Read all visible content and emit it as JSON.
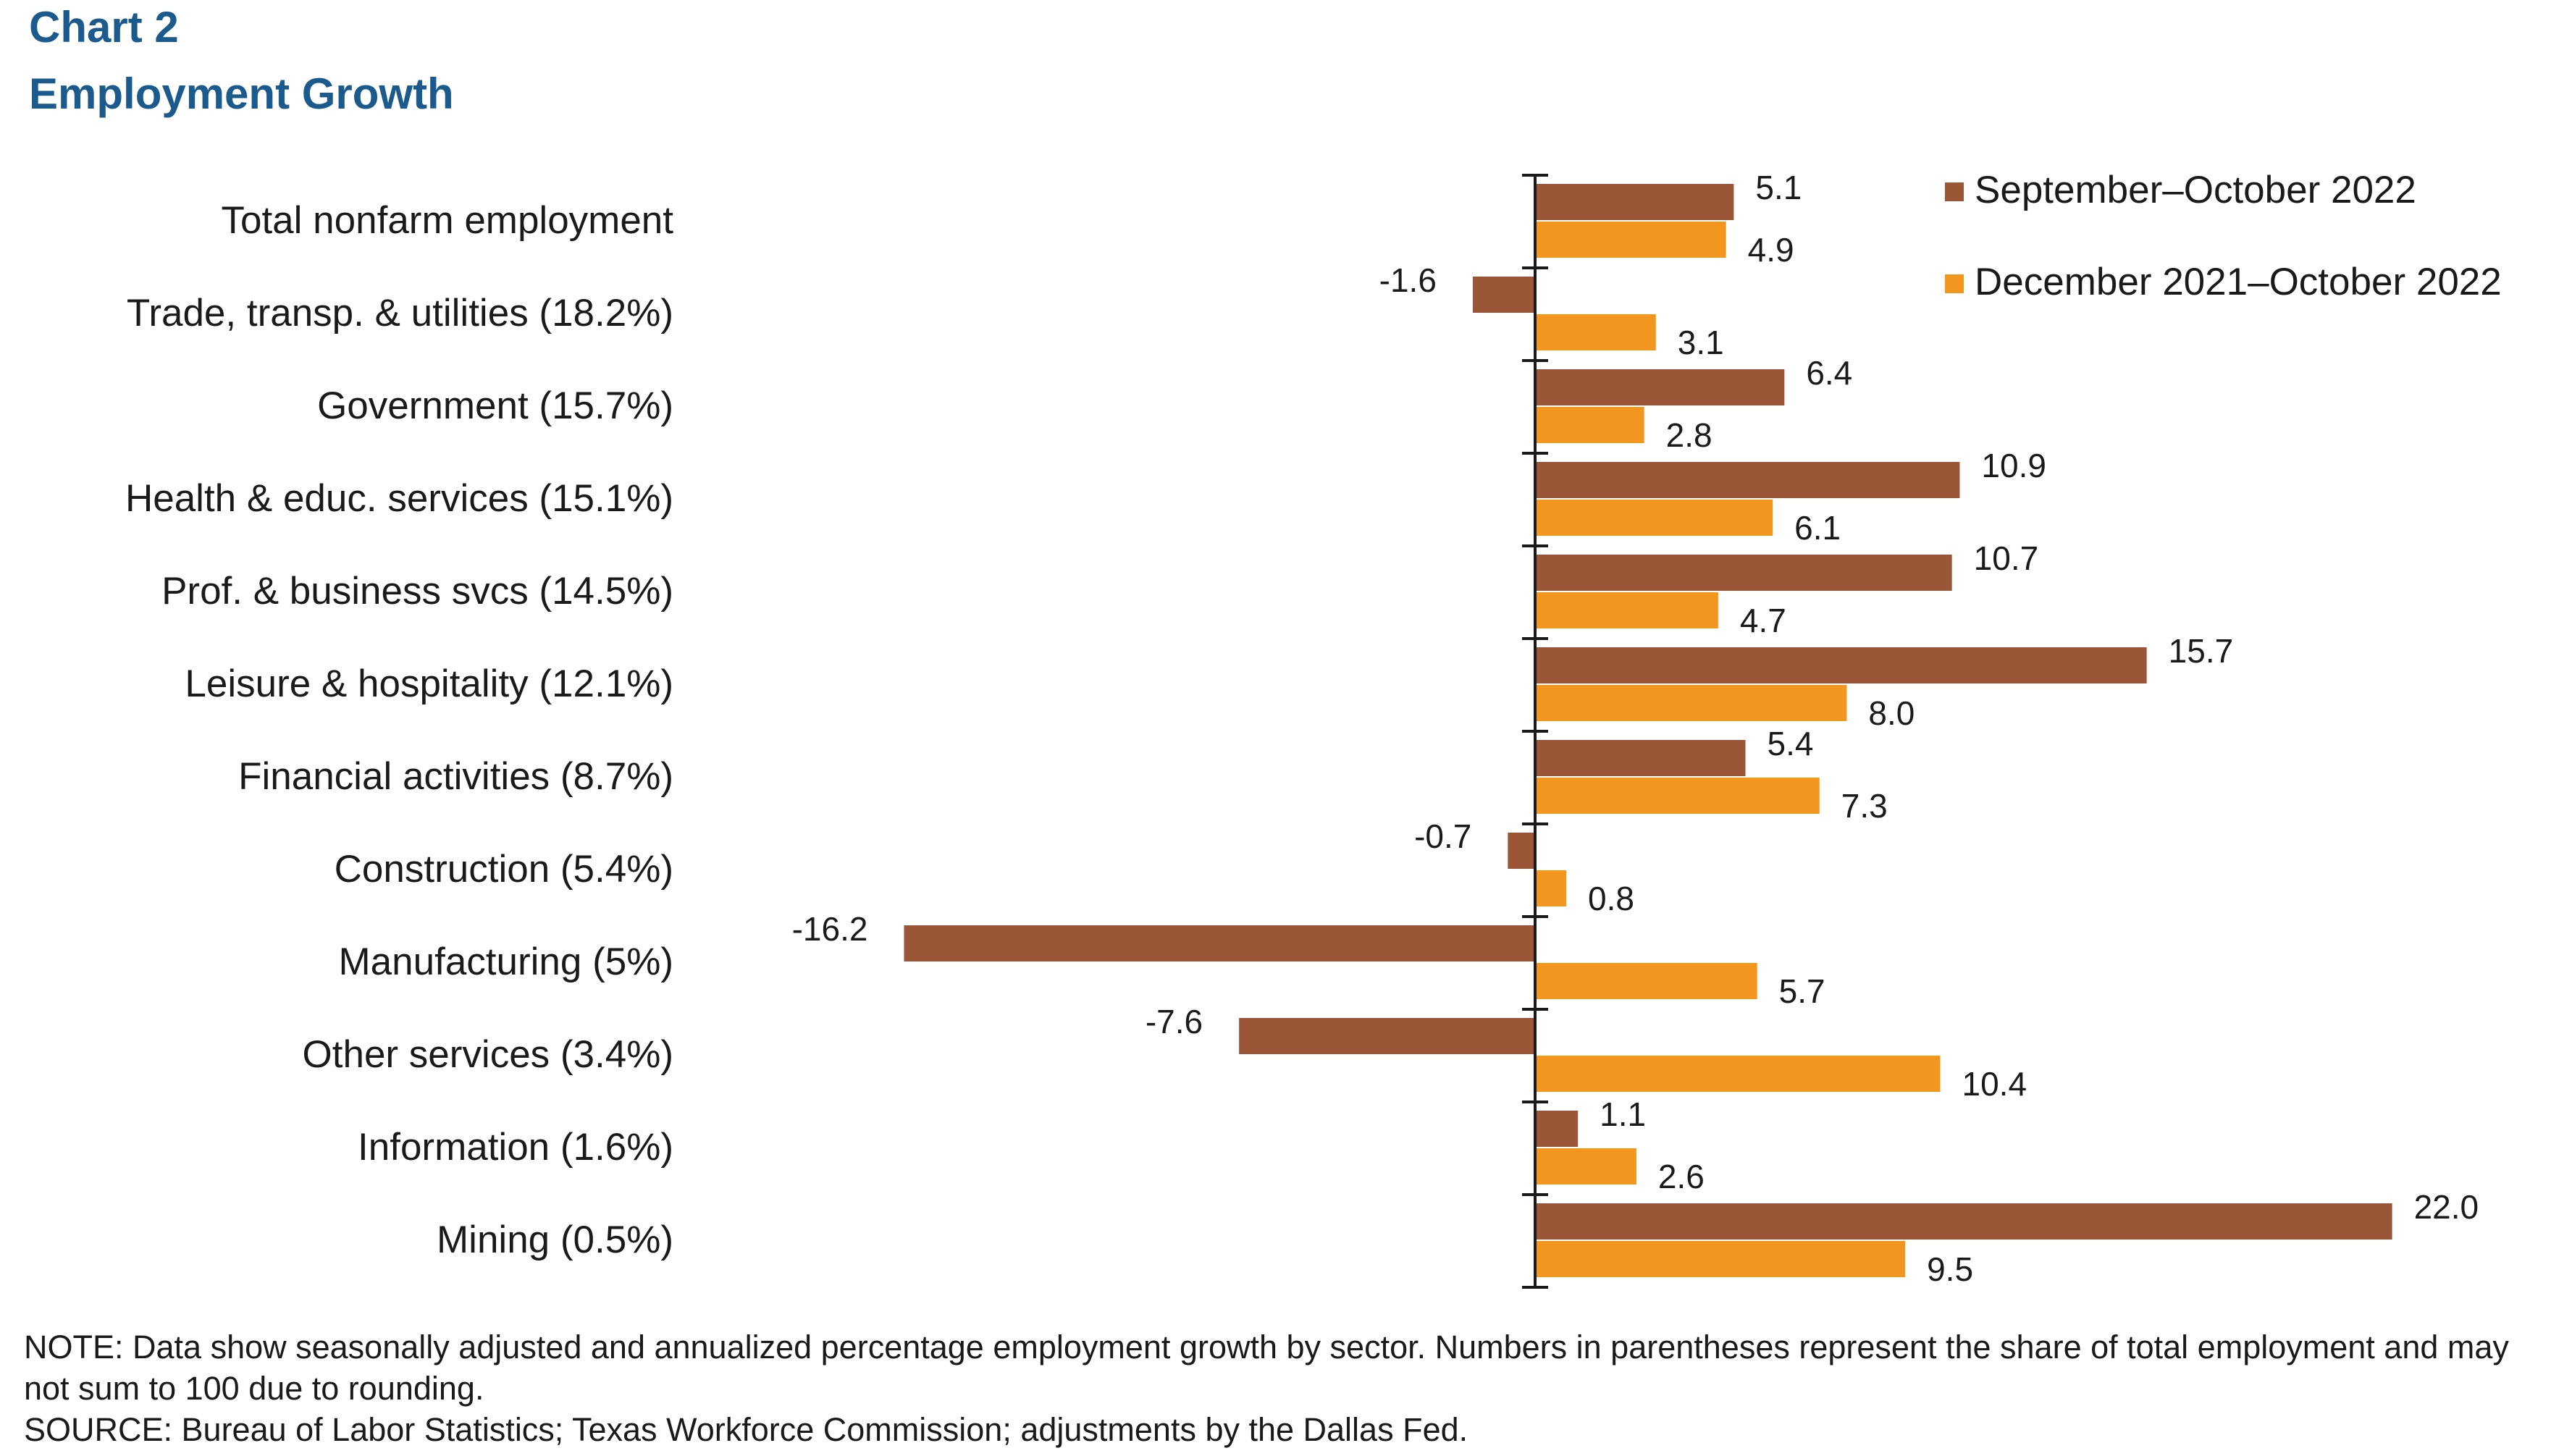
{
  "header": {
    "chart_number": "Chart 2",
    "title": "Employment Growth"
  },
  "footer": {
    "note": "NOTE: Data show seasonally adjusted and annualized percentage employment growth by sector. Numbers in parentheses represent the share of total employment and may not sum to 100 due to rounding.",
    "source": "SOURCE: Bureau of Labor Statistics; Texas Workforce Commission; adjustments by the Dallas Fed."
  },
  "colors": {
    "series_1": "#9b5638",
    "series_2": "#f39620",
    "title": "#1b5a8c"
  },
  "chart_data": {
    "type": "bar",
    "orientation": "horizontal",
    "title": "Employment Growth",
    "xlabel": "",
    "ylabel": "",
    "categories": [
      "Total nonfarm employment",
      "Trade, transp. & utilities (18.2%)",
      "Government (15.7%)",
      "Health & educ. services (15.1%)",
      "Prof. & business svcs (14.5%)",
      "Leisure & hospitality (12.1%)",
      "Financial activities (8.7%)",
      "Construction (5.4%)",
      "Manufacturing (5%)",
      "Other services (3.4%)",
      "Information (1.6%)",
      "Mining (0.5%)"
    ],
    "series": [
      {
        "name": "September–October 2022",
        "values": [
          5.1,
          -1.6,
          6.4,
          10.9,
          10.7,
          15.7,
          5.4,
          -0.7,
          -16.2,
          -7.6,
          1.1,
          22.0
        ],
        "labels": [
          "5.1",
          "-1.6",
          "6.4",
          "10.9",
          "10.7",
          "15.7",
          "5.4",
          "-0.7",
          "-16.2",
          "-7.6",
          "1.1",
          "22.0"
        ]
      },
      {
        "name": "December 2021–October 2022",
        "values": [
          4.9,
          3.1,
          2.8,
          6.1,
          4.7,
          8.0,
          7.3,
          0.8,
          5.7,
          10.4,
          2.6,
          9.5
        ],
        "labels": [
          "4.9",
          "3.1",
          "2.8",
          "6.1",
          "4.7",
          "8.0",
          "7.3",
          "0.8",
          "5.7",
          "10.4",
          "2.6",
          "9.5"
        ]
      }
    ],
    "xlim": [
      -16.2,
      22.0
    ],
    "gridlines": false,
    "axis_labels_visible": false,
    "legend_position": "top-right"
  }
}
